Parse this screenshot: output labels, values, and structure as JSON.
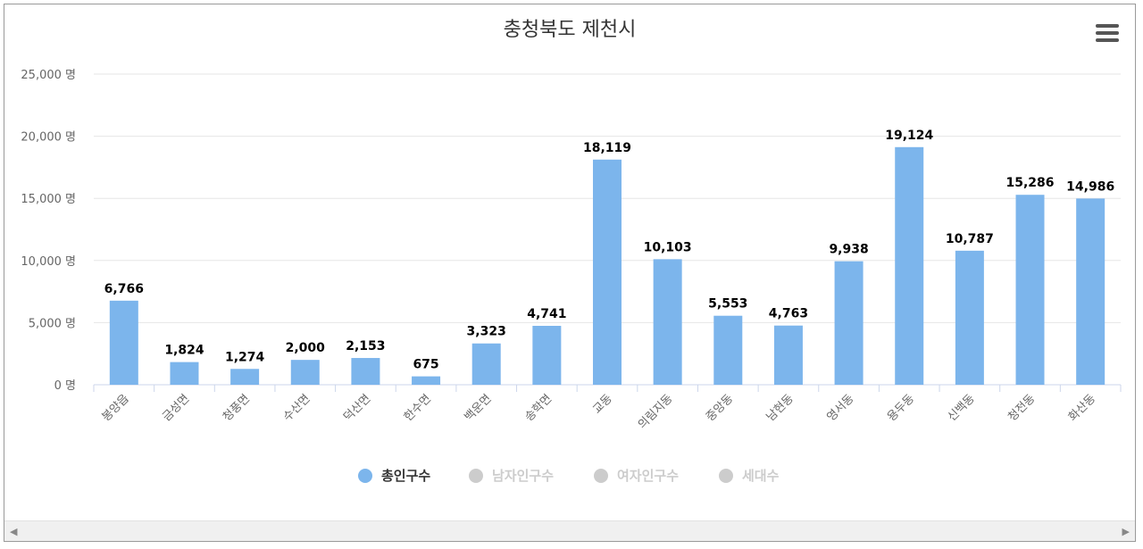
{
  "chart_data": {
    "type": "bar",
    "title": "충청북도 제천시",
    "categories": [
      "봉양읍",
      "금성면",
      "청풍면",
      "수산면",
      "덕산면",
      "한수면",
      "백운면",
      "송학면",
      "교동",
      "의림지동",
      "중앙동",
      "남현동",
      "영서동",
      "용두동",
      "신백동",
      "청전동",
      "화산동"
    ],
    "series": [
      {
        "name": "총인구수",
        "visible": true,
        "color": "#7cb5ec",
        "values": [
          6766,
          1824,
          1274,
          2000,
          2153,
          675,
          3323,
          4741,
          18119,
          10103,
          5553,
          4763,
          9938,
          19124,
          10787,
          15286,
          14986
        ]
      }
    ],
    "value_labels": [
      "6,766",
      "1,824",
      "1,274",
      "2,000",
      "2,153",
      "675",
      "3,323",
      "4,741",
      "18,119",
      "10,103",
      "5,553",
      "4,763",
      "9,938",
      "19,124",
      "10,787",
      "15,286",
      "14,986"
    ],
    "ylim": [
      0,
      25000
    ],
    "yticks": [
      0,
      5000,
      10000,
      15000,
      20000,
      25000
    ],
    "ytick_labels": [
      "0 명",
      "5,000 명",
      "10,000 명",
      "15,000 명",
      "20,000 명",
      "25,000 명"
    ],
    "grid": true,
    "legend_position": "bottom-center"
  },
  "legend": [
    {
      "label": "총인구수",
      "active": true,
      "color": "#7cb5ec"
    },
    {
      "label": "남자인구수",
      "active": false,
      "color": "#cccccc"
    },
    {
      "label": "여자인구수",
      "active": false,
      "color": "#cccccc"
    },
    {
      "label": "세대수",
      "active": false,
      "color": "#cccccc"
    }
  ],
  "colors": {
    "gridline": "#e6e6e6",
    "axis": "#ccd6eb",
    "inactive_text": "#cccccc",
    "active_text": "#333333"
  },
  "icons": {
    "menu": "hamburger-menu-icon",
    "scroll_left": "arrow-left-icon",
    "scroll_right": "arrow-right-icon"
  }
}
